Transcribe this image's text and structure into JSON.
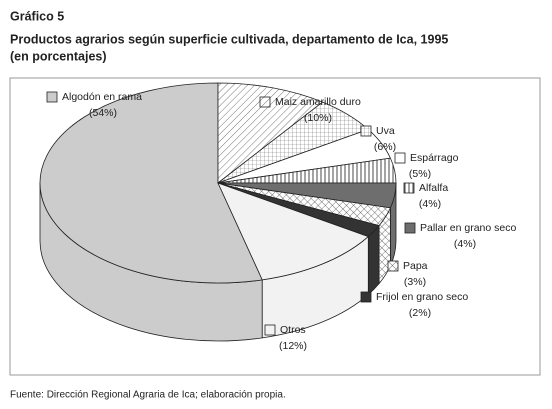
{
  "chart_data": {
    "type": "pie",
    "label": "Gráfico 5",
    "title": "Productos agrarios según superficie cultivada, departamento de Ica, 1995",
    "subtitle": "(en porcentajes)",
    "categories": [
      "Algodón en rama",
      "Maiz amarillo duro",
      "Uva",
      "Espárrago",
      "Alfalfa",
      "Pallar en grano seco",
      "Papa",
      "Frijol en grano seco",
      "Otros"
    ],
    "values": [
      54,
      10,
      6,
      5,
      4,
      4,
      3,
      2,
      12
    ],
    "value_labels": [
      "(54%)",
      "(10%)",
      "(6%)",
      "(5%)",
      "(4%)",
      "(4%)",
      "(3%)",
      "(2%)",
      "(12%)"
    ],
    "colors": [
      "#cccccc",
      "#ffffff",
      "#ffffff",
      "#ffffff",
      "#ffffff",
      "#6e6e6e",
      "#ffffff",
      "#333333",
      "#f2f2f2"
    ],
    "patterns": [
      "solid",
      "diagonal",
      "grid",
      "solid",
      "vertical",
      "solid",
      "crosshatch",
      "solid",
      "solid"
    ],
    "source": "Fuente: Dirección Regional Agraria de Ica; elaboración propia."
  }
}
